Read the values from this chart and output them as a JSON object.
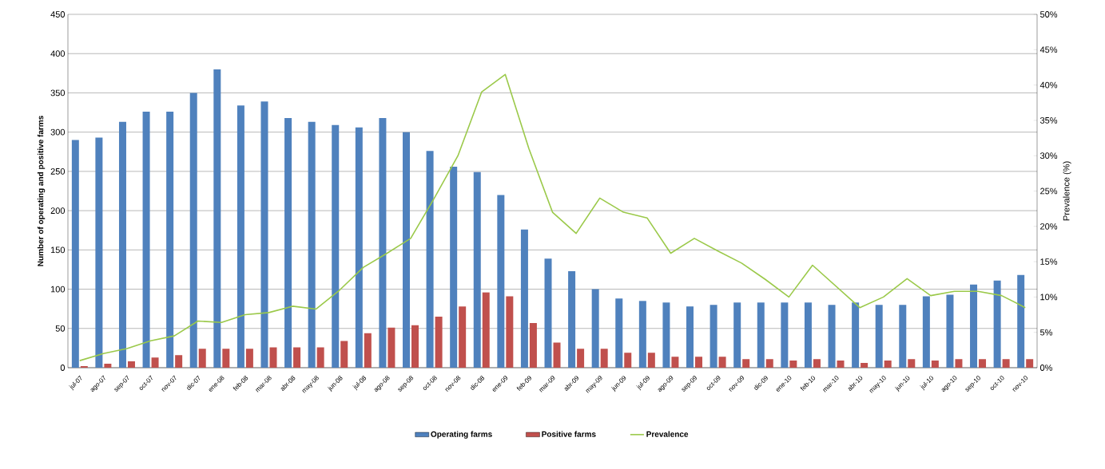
{
  "chart_data": {
    "type": "bar",
    "categories": [
      "jul-07",
      "ago-07",
      "sep-07",
      "oct-07",
      "nov-07",
      "dic-07",
      "ene-08",
      "feb-08",
      "mar-08",
      "abr-08",
      "may-08",
      "jun-08",
      "jul-08",
      "ago-08",
      "sep-08",
      "oct-08",
      "nov-08",
      "dic-08",
      "ene-09",
      "feb-09",
      "mar-09",
      "abr-09",
      "may-09",
      "jun-09",
      "jul-09",
      "ago-09",
      "sep-09",
      "oct-09",
      "nov-09",
      "dic-09",
      "ene-10",
      "feb-10",
      "mar-10",
      "abr-10",
      "may-10",
      "jun-10",
      "jul-10",
      "ago-10",
      "sep-10",
      "oct-10",
      "nov-10"
    ],
    "series": [
      {
        "name": "Operating farms",
        "color": "#4f81bd",
        "values": [
          290,
          293,
          313,
          326,
          326,
          350,
          380,
          334,
          339,
          318,
          313,
          309,
          306,
          318,
          300,
          276,
          256,
          249,
          220,
          176,
          139,
          123,
          100,
          88,
          85,
          83,
          78,
          80,
          83,
          83,
          83,
          83,
          80,
          83,
          80,
          80,
          91,
          93,
          106,
          111,
          118
        ]
      },
      {
        "name": "Positive farms",
        "color": "#c0504d",
        "values": [
          2,
          5,
          8,
          13,
          16,
          24,
          24,
          24,
          26,
          26,
          26,
          34,
          44,
          51,
          54,
          65,
          78,
          96,
          91,
          57,
          32,
          24,
          24,
          19,
          19,
          14,
          14,
          14,
          11,
          11,
          9,
          11,
          9,
          6,
          9,
          11,
          9,
          11,
          11,
          11,
          11
        ]
      },
      {
        "name": "Prevalence",
        "color": "#9bc94a",
        "type": "line",
        "axis": "y2",
        "values": [
          1.0,
          2.0,
          2.7,
          3.8,
          4.5,
          6.6,
          6.4,
          7.5,
          7.8,
          8.7,
          8.3,
          11.0,
          14.2,
          16.2,
          18.3,
          24,
          30,
          39,
          41.5,
          31,
          22,
          19,
          24,
          22,
          21.2,
          16.2,
          18.3,
          16.5,
          14.8,
          12.5,
          10,
          14.5,
          11.5,
          8.5,
          10,
          12.6,
          10.2,
          10.8,
          10.8,
          10.2,
          8.5
        ]
      }
    ],
    "ylabel": "Number of operating and positive farms",
    "y2label": "Prevalence (%)",
    "ylim": [
      0,
      450
    ],
    "yticks": [
      0,
      50,
      100,
      150,
      200,
      250,
      300,
      350,
      400,
      450
    ],
    "y2lim": [
      0,
      50
    ],
    "y2ticks": [
      {
        "value": 0,
        "label": "0%"
      },
      {
        "value": 5,
        "label": "5%"
      },
      {
        "value": 10,
        "label": "10%"
      },
      {
        "value": 15,
        "label": "15%"
      },
      {
        "value": 20,
        "label": "20%"
      },
      {
        "value": 25,
        "label": "25%"
      },
      {
        "value": 30,
        "label": "30%"
      },
      {
        "value": 35,
        "label": "35%"
      },
      {
        "value": 40,
        "label": "40%"
      },
      {
        "value": 45,
        "label": "45%"
      },
      {
        "value": 50,
        "label": "50%"
      }
    ],
    "grid": "y",
    "legend": "bottom"
  }
}
